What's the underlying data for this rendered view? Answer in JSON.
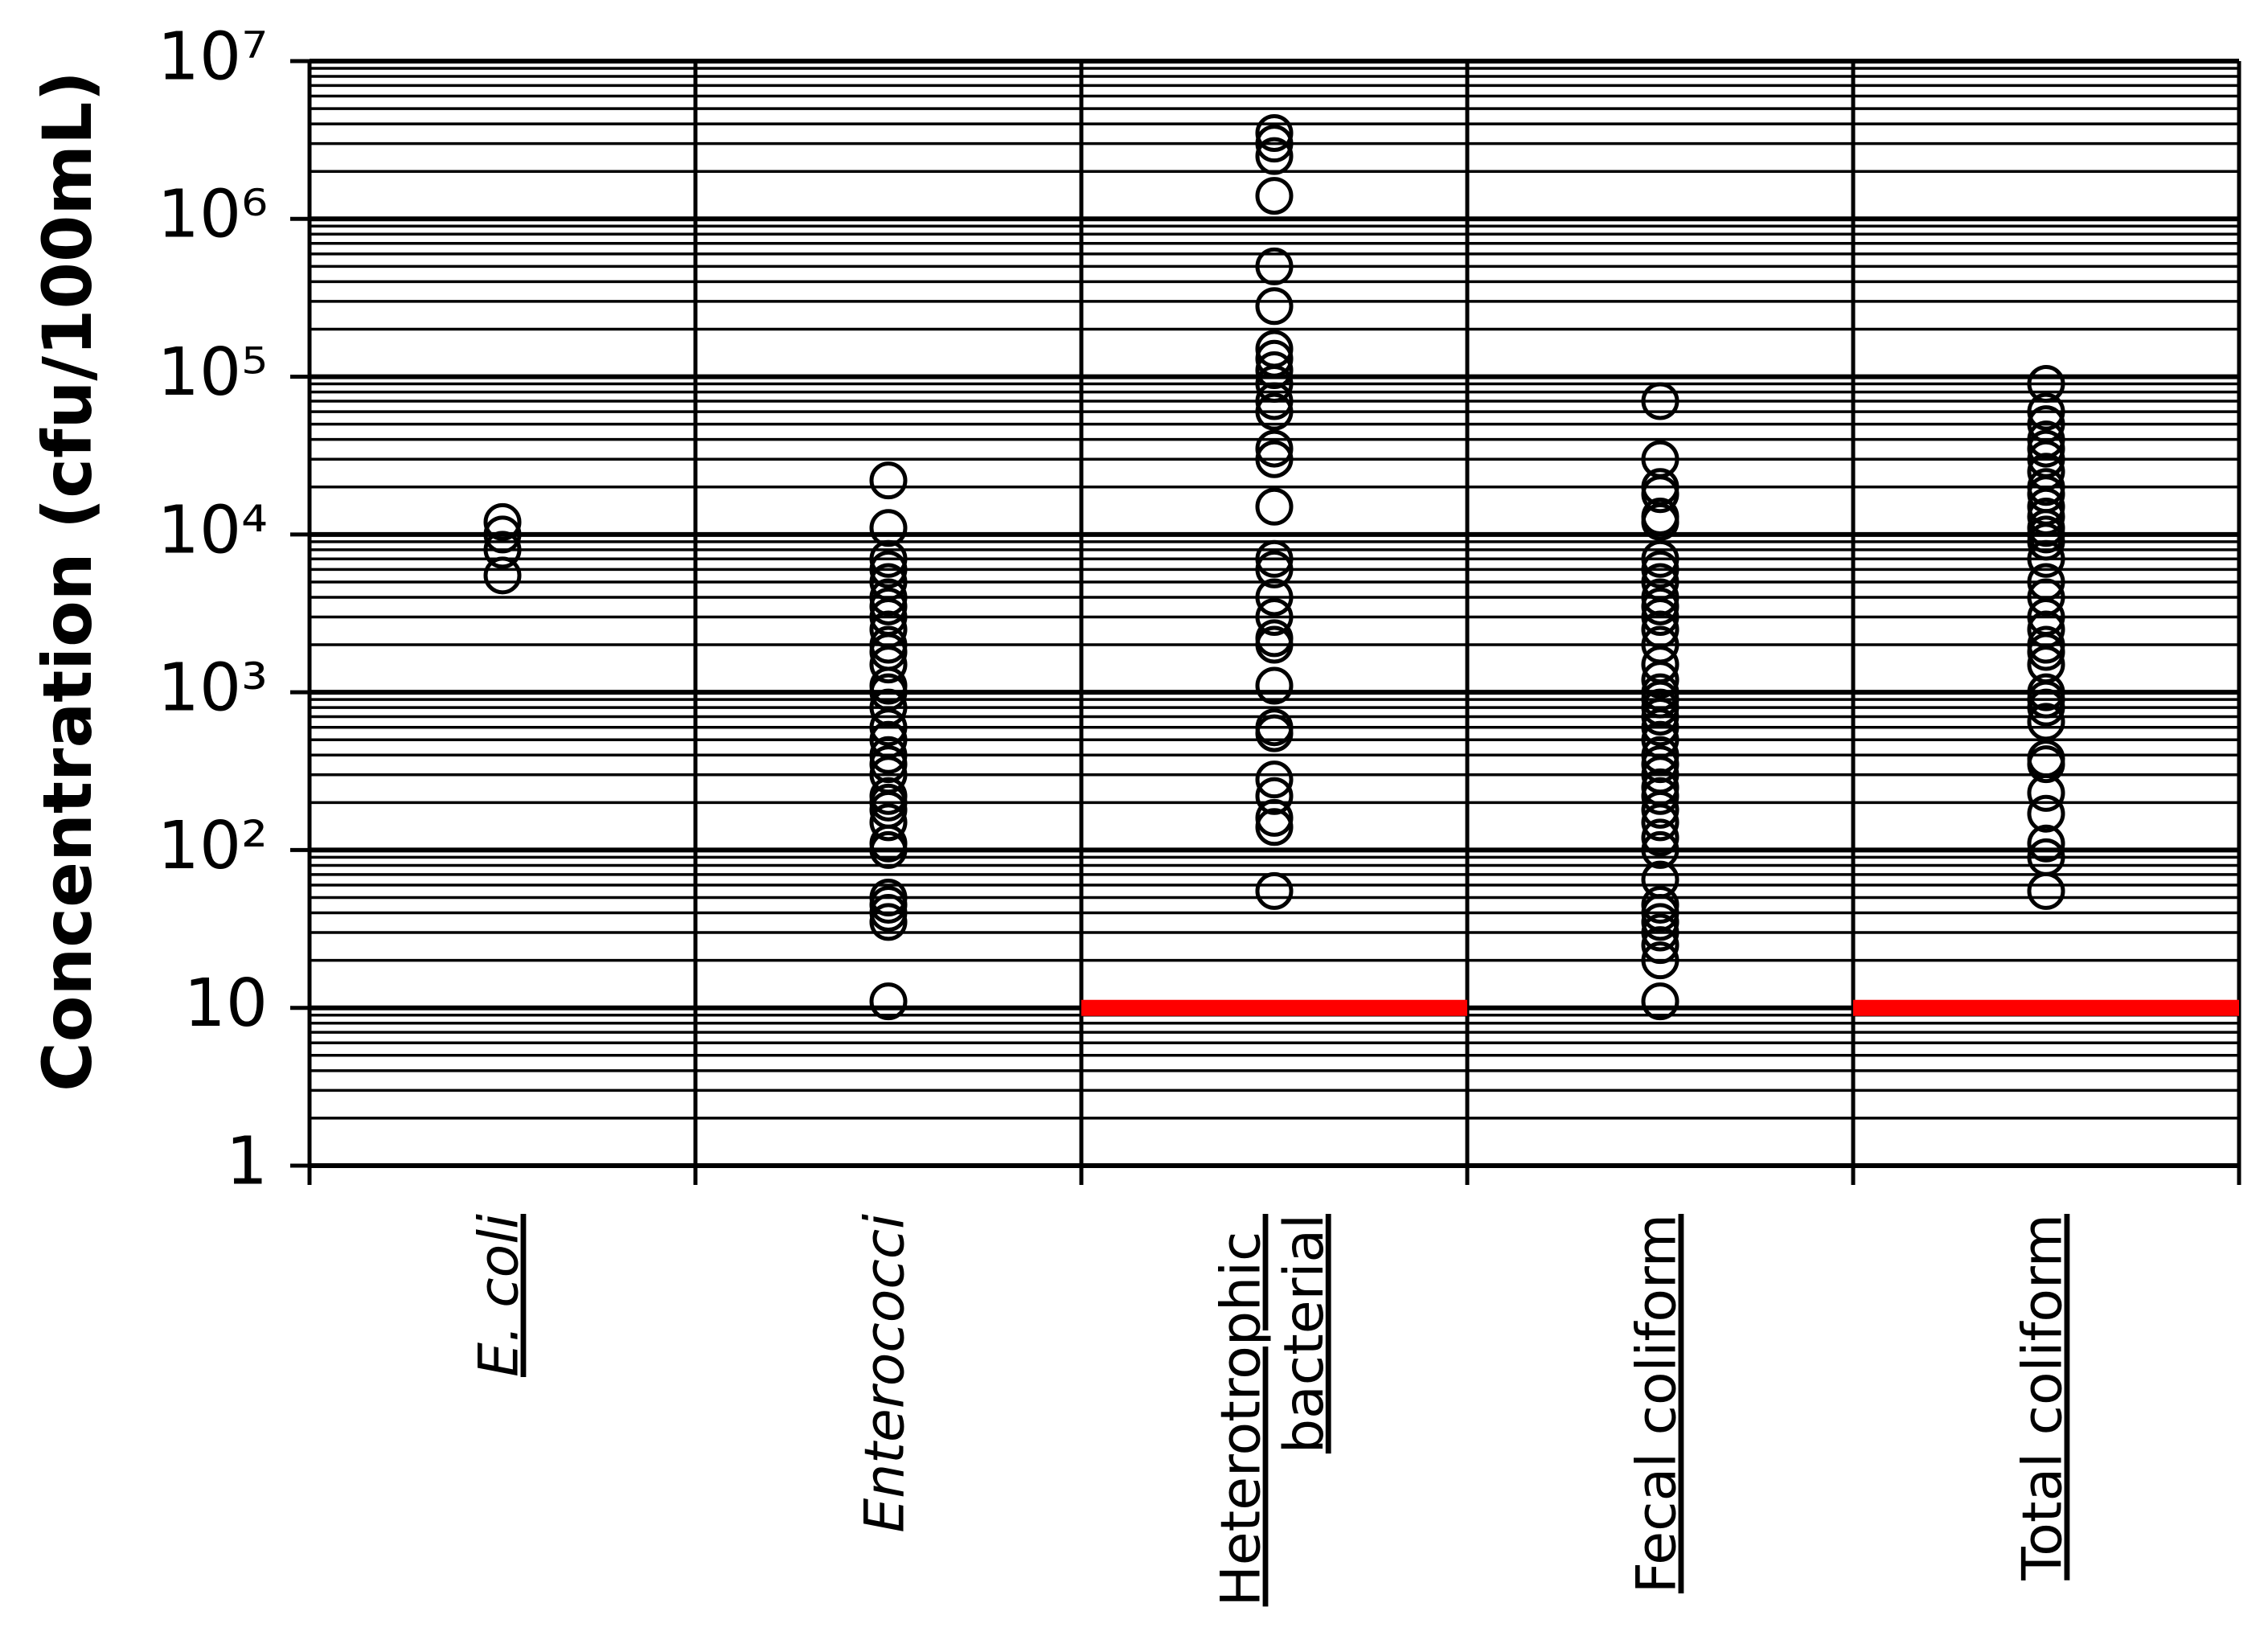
{
  "chart_data": {
    "type": "strip",
    "y_label": "Concentration (cfu/100mL)",
    "categories": [
      "E. coli",
      "Enterococci",
      "Heterotrophic bacterial",
      "Fecal coliform",
      "Total coliform"
    ],
    "italic": [
      true,
      true,
      false,
      false,
      false
    ],
    "underlined": [
      true,
      false,
      true,
      true,
      true
    ],
    "values": [
      [
        12000,
        10000,
        8000,
        5500
      ],
      [
        22000,
        11000,
        7000,
        6000,
        5000,
        4000,
        3500,
        3000,
        2500,
        2000,
        1800,
        1500,
        1100,
        1000,
        800,
        600,
        500,
        400,
        350,
        300,
        220,
        200,
        180,
        150,
        110,
        100,
        50,
        45,
        40,
        35,
        11
      ],
      [
        3500000,
        3000000,
        2500000,
        1400000,
        500000,
        280000,
        150000,
        130000,
        110000,
        90000,
        70000,
        60000,
        35000,
        30000,
        15000,
        7000,
        6000,
        4000,
        3000,
        2200,
        2000,
        1100,
        600,
        550,
        280,
        220,
        160,
        140,
        55
      ],
      [
        70000,
        30000,
        20000,
        18000,
        13000,
        12000,
        7000,
        6000,
        5000,
        4000,
        3500,
        3000,
        2500,
        2000,
        1500,
        1200,
        1000,
        900,
        800,
        700,
        600,
        500,
        400,
        350,
        300,
        250,
        220,
        180,
        150,
        120,
        100,
        65,
        45,
        40,
        35,
        30,
        25,
        20,
        11
      ],
      [
        90000,
        60000,
        50000,
        40000,
        35000,
        30000,
        25000,
        20000,
        18000,
        15000,
        13000,
        11000,
        10000,
        9000,
        7000,
        5000,
        4000,
        3000,
        2500,
        2000,
        1800,
        1500,
        1000,
        900,
        800,
        650,
        380,
        350,
        230,
        170,
        110,
        90,
        55
      ]
    ],
    "color": "#000000",
    "limits": [
      null,
      null,
      10,
      null,
      10
    ],
    "limit_color": "#ff0000",
    "ylim": [
      1,
      10000000
    ],
    "log_y": true,
    "yticks": [
      1,
      10,
      {
        "value": 100,
        "label": "10²"
      },
      {
        "value": 1000,
        "label": "10³"
      },
      {
        "value": 10000,
        "label": "10⁴"
      },
      {
        "value": 100000,
        "label": "10⁵"
      },
      {
        "value": 1000000,
        "label": "10⁶"
      },
      {
        "value": 10000000,
        "label": "10⁷"
      }
    ],
    "grid": true,
    "minor_grid": true
  }
}
